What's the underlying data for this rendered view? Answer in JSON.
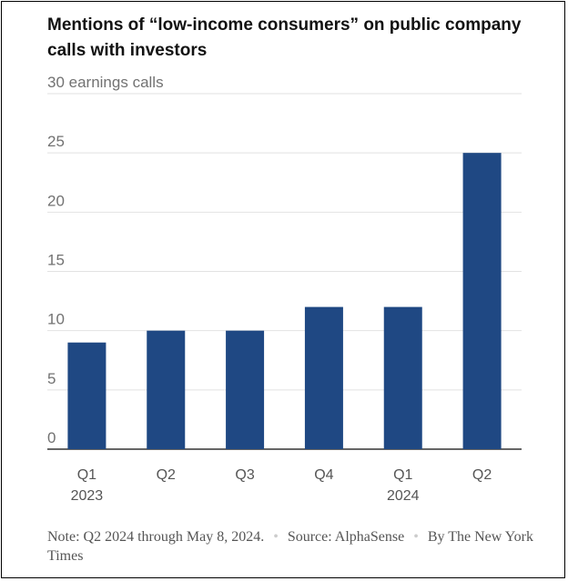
{
  "title": "Mentions of “low-income consumers” on public company calls with investors",
  "footer": {
    "note": "Note: Q2 2024 through May 8, 2024.",
    "separator": "•",
    "source": "Source: AlphaSense",
    "byline": "By The New York Times"
  },
  "chart_data": {
    "type": "bar",
    "title": "Mentions of “low-income consumers” on public company calls with investors",
    "ylabel": "earnings calls",
    "xlabel": "",
    "categories": [
      "Q1 2023",
      "Q2 2023",
      "Q3 2023",
      "Q4 2023",
      "Q1 2024",
      "Q2 2024"
    ],
    "x_tick_labels": [
      {
        "quarter": "Q1",
        "year": "2023"
      },
      {
        "quarter": "Q2",
        "year": ""
      },
      {
        "quarter": "Q3",
        "year": ""
      },
      {
        "quarter": "Q4",
        "year": ""
      },
      {
        "quarter": "Q1",
        "year": "2024"
      },
      {
        "quarter": "Q2",
        "year": ""
      }
    ],
    "values": [
      9,
      10,
      10,
      12,
      12,
      25
    ],
    "ylim": [
      0,
      30
    ],
    "yticks": [
      0,
      5,
      10,
      15,
      20,
      25,
      30
    ],
    "top_tick_label": "30 earnings calls",
    "bar_color": "#1f4883",
    "grid": true
  }
}
